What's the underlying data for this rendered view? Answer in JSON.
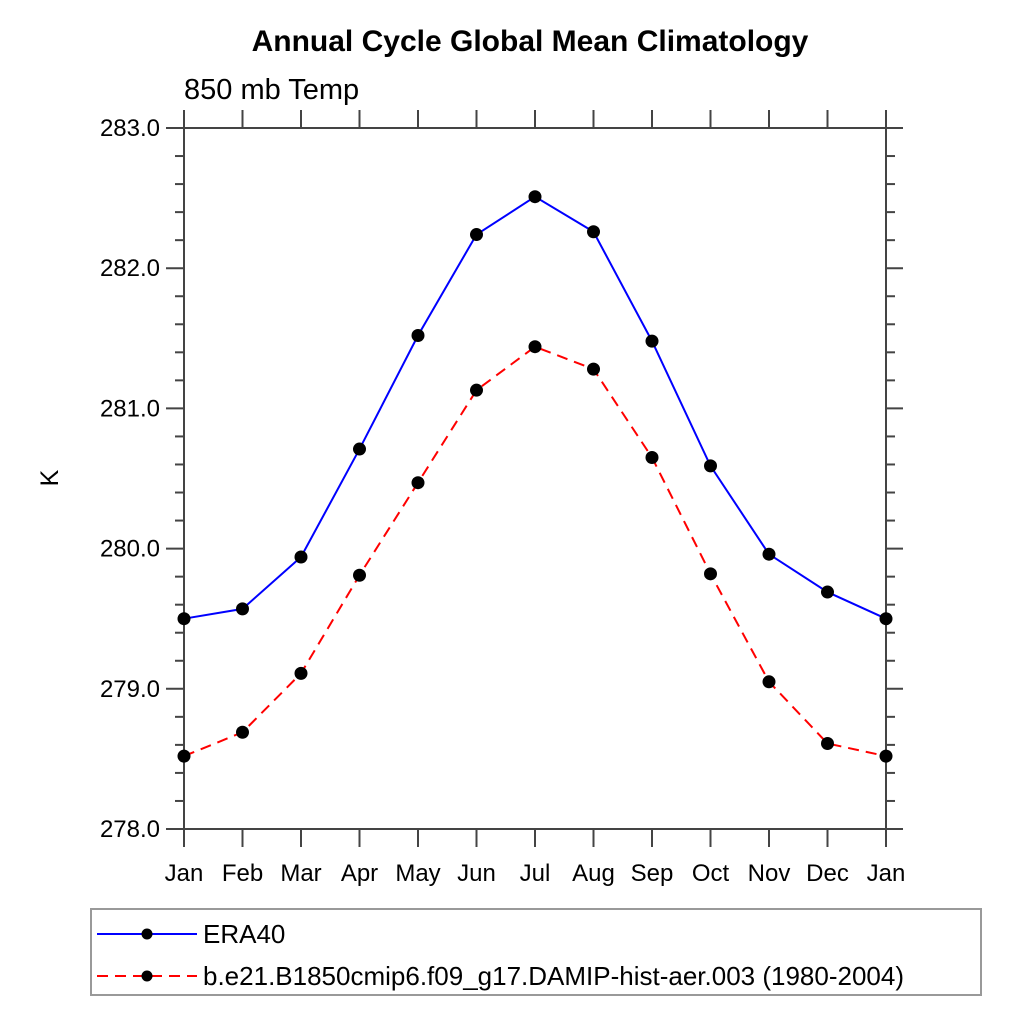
{
  "page": {
    "background": "#ffffff",
    "frame_color": "#444444",
    "legend_border_color": "#999999"
  },
  "chart_data": {
    "type": "line",
    "title": "Annual Cycle Global Mean Climatology",
    "subtitle": "850 mb Temp",
    "ylabel": "K",
    "xlabel": "",
    "x_tick_labels": [
      "Jan",
      "Feb",
      "Mar",
      "Apr",
      "May",
      "Jun",
      "Jul",
      "Aug",
      "Sep",
      "Oct",
      "Nov",
      "Dec",
      "Jan"
    ],
    "ylim": [
      278.0,
      283.0
    ],
    "y_major_step": 1.0,
    "y_minor_step": 0.2,
    "y_tick_labels": [
      "278.0",
      "279.0",
      "280.0",
      "281.0",
      "282.0",
      "283.0"
    ],
    "grid": false,
    "legend_position": "bottom-left-box",
    "marker": "filled-circle",
    "marker_color": "#000000",
    "series": [
      {
        "name": "ERA40",
        "color": "#0000ff",
        "line_style": "solid",
        "values": [
          279.5,
          279.57,
          279.94,
          280.71,
          281.52,
          282.24,
          282.51,
          282.26,
          281.48,
          280.59,
          279.96,
          279.69,
          279.5
        ]
      },
      {
        "name": "b.e21.B1850cmip6.f09_g17.DAMIP-hist-aer.003 (1980-2004)",
        "color": "#ff0000",
        "line_style": "dashed",
        "values": [
          278.52,
          278.69,
          279.11,
          279.81,
          280.47,
          281.13,
          281.44,
          281.28,
          280.65,
          279.82,
          279.05,
          278.61,
          278.52
        ]
      }
    ]
  }
}
